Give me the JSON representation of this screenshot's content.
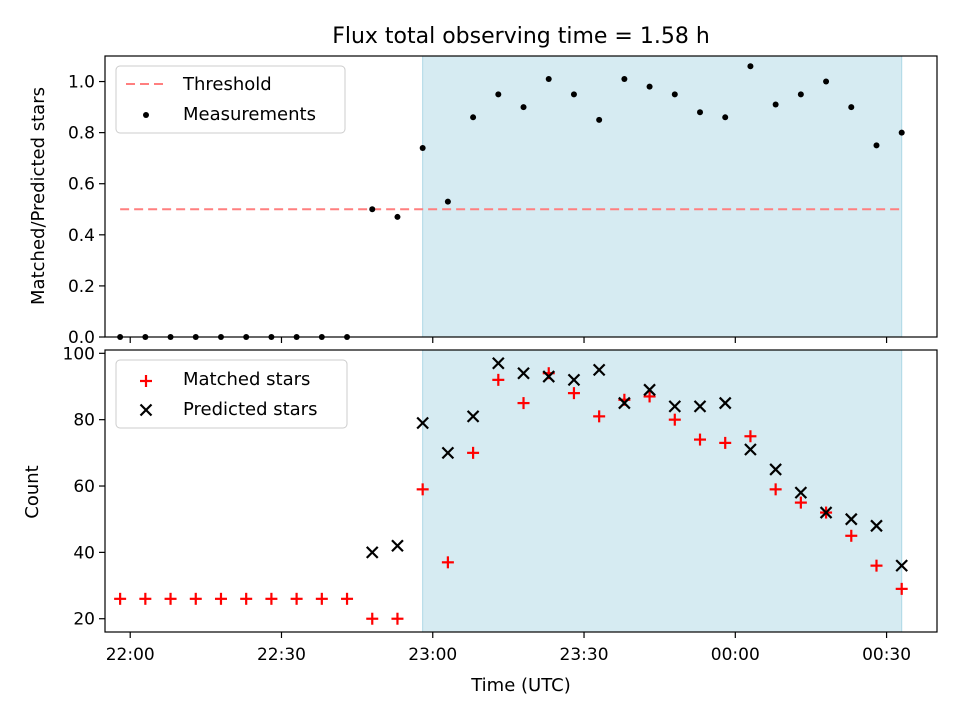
{
  "chart_data": [
    {
      "type": "scatter",
      "title": "Flux total observing time = 1.58 h",
      "xlabel": "",
      "ylabel": "Matched/Predicted stars",
      "ylim": [
        0,
        1.1
      ],
      "yticks": [
        "0.0",
        "0.2",
        "0.4",
        "0.6",
        "0.8",
        "1.0"
      ],
      "xlim": [
        "21:55",
        "00:40"
      ],
      "xticks": [
        "22:00",
        "22:30",
        "23:00",
        "23:30",
        "00:00",
        "00:30"
      ],
      "show_x_ticklabels": false,
      "shaded_span": {
        "from": "22:58",
        "to": "00:33",
        "color": "#add8e6"
      },
      "legend_position": "top-left",
      "threshold": {
        "name": "Threshold",
        "value": 0.5,
        "from": "21:58",
        "to": "00:33",
        "color": "#ff7f7f",
        "style": "dashed"
      },
      "series": [
        {
          "name": "Measurements",
          "marker": "dot",
          "color": "#000000",
          "x": [
            "21:58",
            "22:03",
            "22:08",
            "22:13",
            "22:18",
            "22:23",
            "22:28",
            "22:33",
            "22:38",
            "22:43",
            "22:48",
            "22:53",
            "22:58",
            "23:03",
            "23:08",
            "23:13",
            "23:18",
            "23:23",
            "23:28",
            "23:33",
            "23:38",
            "23:43",
            "23:48",
            "23:53",
            "23:58",
            "00:03",
            "00:08",
            "00:13",
            "00:18",
            "00:23",
            "00:28",
            "00:33"
          ],
          "y": [
            0,
            0,
            0,
            0,
            0,
            0,
            0,
            0,
            0,
            0,
            0.5,
            0.47,
            0.74,
            0.53,
            0.86,
            0.95,
            0.9,
            1.01,
            0.95,
            0.85,
            1.01,
            0.98,
            0.95,
            0.88,
            0.86,
            1.06,
            0.91,
            0.95,
            1.0,
            0.9,
            0.75,
            0.8
          ]
        }
      ]
    },
    {
      "type": "scatter",
      "title": "",
      "xlabel": "Time (UTC)",
      "ylabel": "Count",
      "ylim": [
        16,
        101
      ],
      "yticks": [
        "20",
        "40",
        "60",
        "80",
        "100"
      ],
      "xlim": [
        "21:55",
        "00:40"
      ],
      "xticks": [
        "22:00",
        "22:30",
        "23:00",
        "23:30",
        "00:00",
        "00:30"
      ],
      "shaded_span": {
        "from": "22:58",
        "to": "00:33",
        "color": "#add8e6"
      },
      "legend_position": "top-left",
      "series": [
        {
          "name": "Matched stars",
          "marker": "plus",
          "color": "#ff0000",
          "x": [
            "21:58",
            "22:03",
            "22:08",
            "22:13",
            "22:18",
            "22:23",
            "22:28",
            "22:33",
            "22:38",
            "22:43",
            "22:48",
            "22:53",
            "22:58",
            "23:03",
            "23:08",
            "23:13",
            "23:18",
            "23:23",
            "23:28",
            "23:33",
            "23:38",
            "23:43",
            "23:48",
            "23:53",
            "23:58",
            "00:03",
            "00:08",
            "00:13",
            "00:18",
            "00:23",
            "00:28",
            "00:33"
          ],
          "y": [
            26,
            26,
            26,
            26,
            26,
            26,
            26,
            26,
            26,
            26,
            20,
            20,
            59,
            37,
            70,
            92,
            85,
            94,
            88,
            81,
            86,
            87,
            80,
            74,
            73,
            75,
            59,
            55,
            52,
            45,
            36,
            29
          ]
        },
        {
          "name": "Predicted stars",
          "marker": "x",
          "color": "#000000",
          "x": [
            "22:48",
            "22:53",
            "22:58",
            "23:03",
            "23:08",
            "23:13",
            "23:18",
            "23:23",
            "23:28",
            "23:33",
            "23:38",
            "23:43",
            "23:48",
            "23:53",
            "23:58",
            "00:03",
            "00:08",
            "00:13",
            "00:18",
            "00:23",
            "00:28",
            "00:33"
          ],
          "y": [
            40,
            42,
            79,
            70,
            81,
            97,
            94,
            93,
            92,
            95,
            85,
            89,
            84,
            84,
            85,
            71,
            65,
            58,
            52,
            50,
            48,
            36
          ]
        }
      ]
    }
  ]
}
